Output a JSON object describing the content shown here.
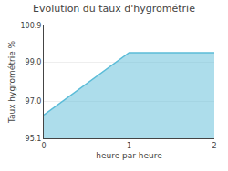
{
  "chart_data": {
    "type": "area",
    "title": "Evolution du taux d'hygrométrie",
    "x_label": "heure par heure",
    "y_label": "Taux hygrométrie %",
    "x": [
      0,
      1,
      2
    ],
    "values": [
      96.3,
      99.5,
      99.5
    ],
    "color": "#5bbcd8",
    "xlim": [
      0,
      2
    ],
    "xticks": [
      0,
      1,
      2
    ],
    "ylim": [
      95.1,
      100.9
    ],
    "yticks": [
      95.1,
      {
        "value": 97.0,
        "label": "97.0"
      },
      {
        "value": 99.0,
        "label": "99.0"
      },
      100.9
    ],
    "grid": true
  }
}
